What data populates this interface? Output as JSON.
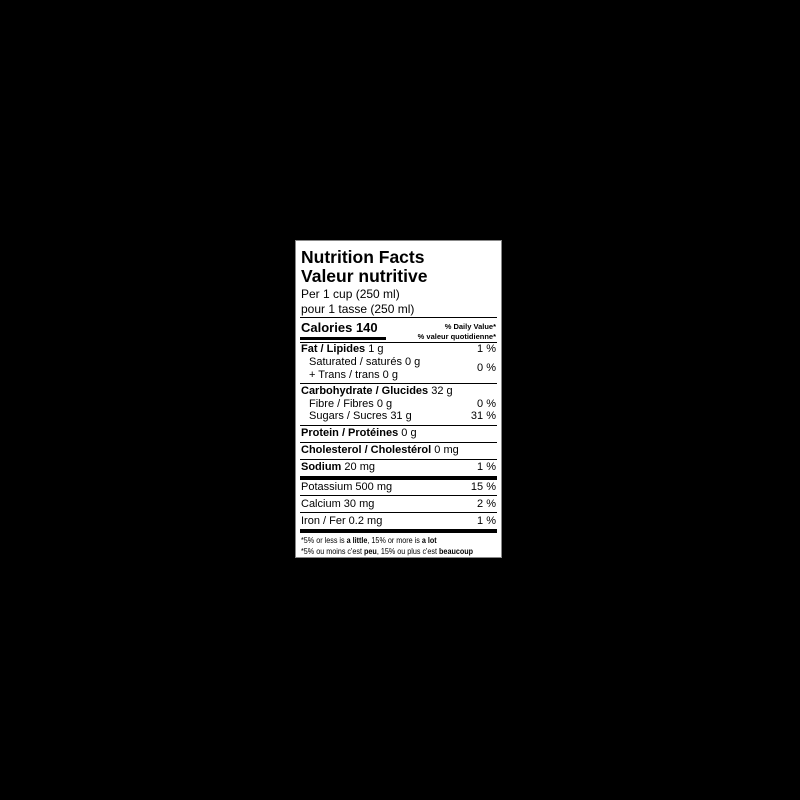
{
  "title_en": "Nutrition Facts",
  "title_fr": "Valeur nutritive",
  "serving_en": "Per 1 cup (250 ml)",
  "serving_fr": "pour 1 tasse (250 ml)",
  "calories": {
    "label": "Calories",
    "value": "140"
  },
  "dv_en": "% Daily Value*",
  "dv_fr": "% valeur quotidienne*",
  "nutrients": [
    {
      "label": "Fat / Lipides",
      "amount": "1 g",
      "dv": "1 %"
    },
    {
      "label": "Saturated / saturés 0 g"
    },
    {
      "label": "+ Trans / trans 0 g",
      "dv": "0 %"
    },
    {
      "label": "Carbohydrate / Glucides",
      "amount": "32 g"
    },
    {
      "label": "Fibre / Fibres 0 g",
      "dv": "0 %"
    },
    {
      "label": "Sugars / Sucres 31 g",
      "dv": "31 %"
    },
    {
      "label": "Protein / Protéines",
      "amount": "0 g"
    },
    {
      "label": "Cholesterol / Cholestérol",
      "amount": "0 mg"
    },
    {
      "label": "Sodium",
      "amount": "20 mg",
      "dv": "1 %"
    },
    {
      "label": "Potassium 500 mg",
      "dv": "15 %"
    },
    {
      "label": "Calcium 30 mg",
      "dv": "2 %"
    },
    {
      "label": "Iron / Fer 0.2 mg",
      "dv": "1 %"
    }
  ],
  "footnote_en": {
    "a": "*5% or less is ",
    "b": "a little",
    "c": ", 15% or more is ",
    "d": "a lot"
  },
  "footnote_fr": {
    "a": "*5% ou moins c'est ",
    "b": "peu",
    "c": ", 15% ou plus c'est ",
    "d": "beaucoup"
  }
}
